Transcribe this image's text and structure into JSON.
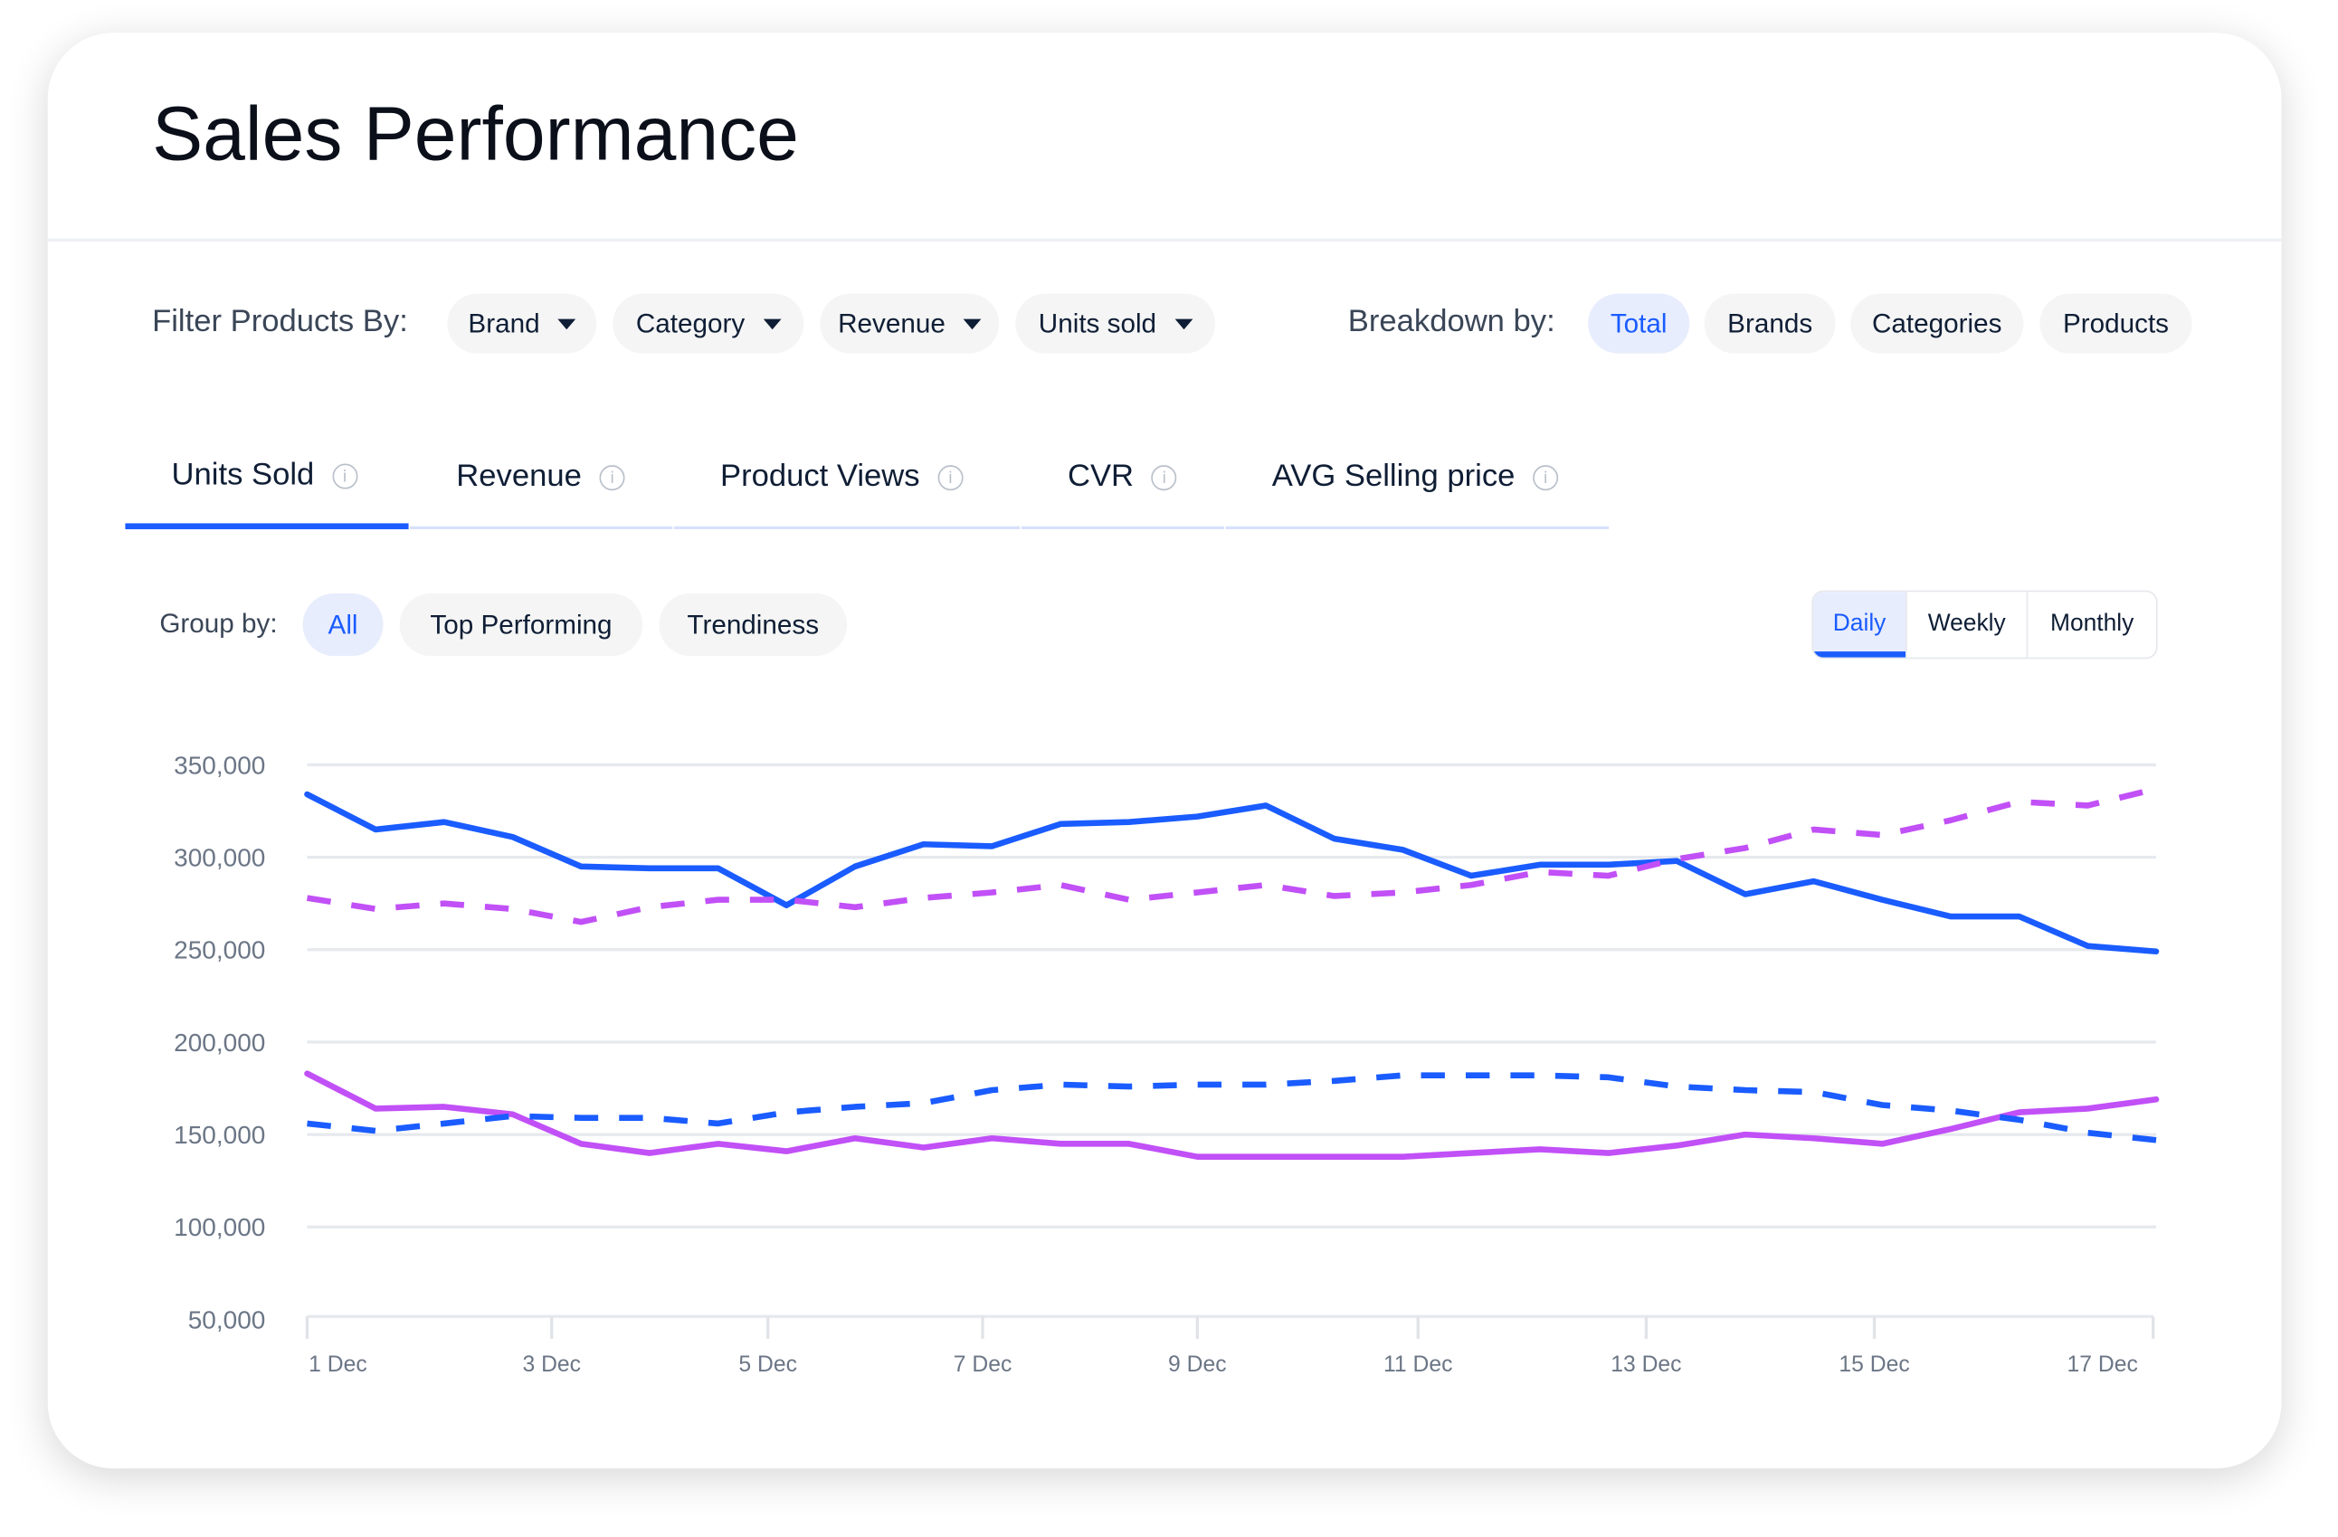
{
  "title": "Sales Performance",
  "filter": {
    "label": "Filter Products By:",
    "dropdowns": [
      "Brand",
      "Category",
      "Revenue",
      "Units sold"
    ]
  },
  "breakdown": {
    "label": "Breakdown by:",
    "options": [
      "Total",
      "Brands",
      "Categories",
      "Products"
    ],
    "selected": "Total"
  },
  "tabs": [
    {
      "label": "Units Sold",
      "active": true
    },
    {
      "label": "Revenue"
    },
    {
      "label": "Product Views"
    },
    {
      "label": "CVR"
    },
    {
      "label": "AVG Selling price"
    }
  ],
  "group_by": {
    "label": "Group by:",
    "options": [
      "All",
      "Top Performing",
      "Trendiness"
    ],
    "selected": "All"
  },
  "period": {
    "options": [
      "Daily",
      "Weekly",
      "Monthly"
    ],
    "selected": "Daily"
  },
  "colors": {
    "accent": "#1a5cff",
    "purple": "#c150f7"
  },
  "chart_data": {
    "type": "line",
    "ylim": [
      50000,
      350000
    ],
    "y_ticks": [
      "350,000",
      "300,000",
      "250,000",
      "200,000",
      "150,000",
      "100,000",
      "50,000"
    ],
    "x_ticks": [
      "1 Dec",
      "3 Dec",
      "5 Dec",
      "7 Dec",
      "9 Dec",
      "11 Dec",
      "13 Dec",
      "15 Dec",
      "17 Dec"
    ],
    "grid": true,
    "series": [
      {
        "color": "#1a5cff",
        "style": "solid",
        "values": [
          334000,
          315000,
          319000,
          311000,
          295000,
          294000,
          294000,
          274000,
          295000,
          307000,
          306000,
          318000,
          319000,
          322000,
          328000,
          310000,
          304000,
          290000,
          296000,
          296000,
          298000,
          280000,
          287000,
          277000,
          268000,
          268000,
          252000,
          249000
        ]
      },
      {
        "color": "#c150f7",
        "style": "dashed",
        "values": [
          278000,
          272000,
          275000,
          272000,
          265000,
          273000,
          277000,
          277000,
          273000,
          278000,
          281000,
          285000,
          277000,
          281000,
          285000,
          279000,
          281000,
          285000,
          292000,
          290000,
          299000,
          305000,
          315000,
          312000,
          320000,
          330000,
          328000,
          337000
        ]
      },
      {
        "color": "#c150f7",
        "style": "solid",
        "values": [
          183000,
          164000,
          165000,
          161000,
          145000,
          140000,
          145000,
          141000,
          148000,
          143000,
          148000,
          145000,
          145000,
          138000,
          138000,
          138000,
          138000,
          140000,
          142000,
          140000,
          144000,
          150000,
          148000,
          145000,
          153000,
          162000,
          164000,
          169000
        ]
      },
      {
        "color": "#1a5cff",
        "style": "dashed",
        "values": [
          156000,
          152000,
          156000,
          160000,
          159000,
          159000,
          156000,
          162000,
          165000,
          167000,
          174000,
          177000,
          176000,
          177000,
          177000,
          179000,
          182000,
          182000,
          182000,
          181000,
          176000,
          174000,
          173000,
          166000,
          163000,
          158000,
          151000,
          147000
        ]
      }
    ]
  }
}
